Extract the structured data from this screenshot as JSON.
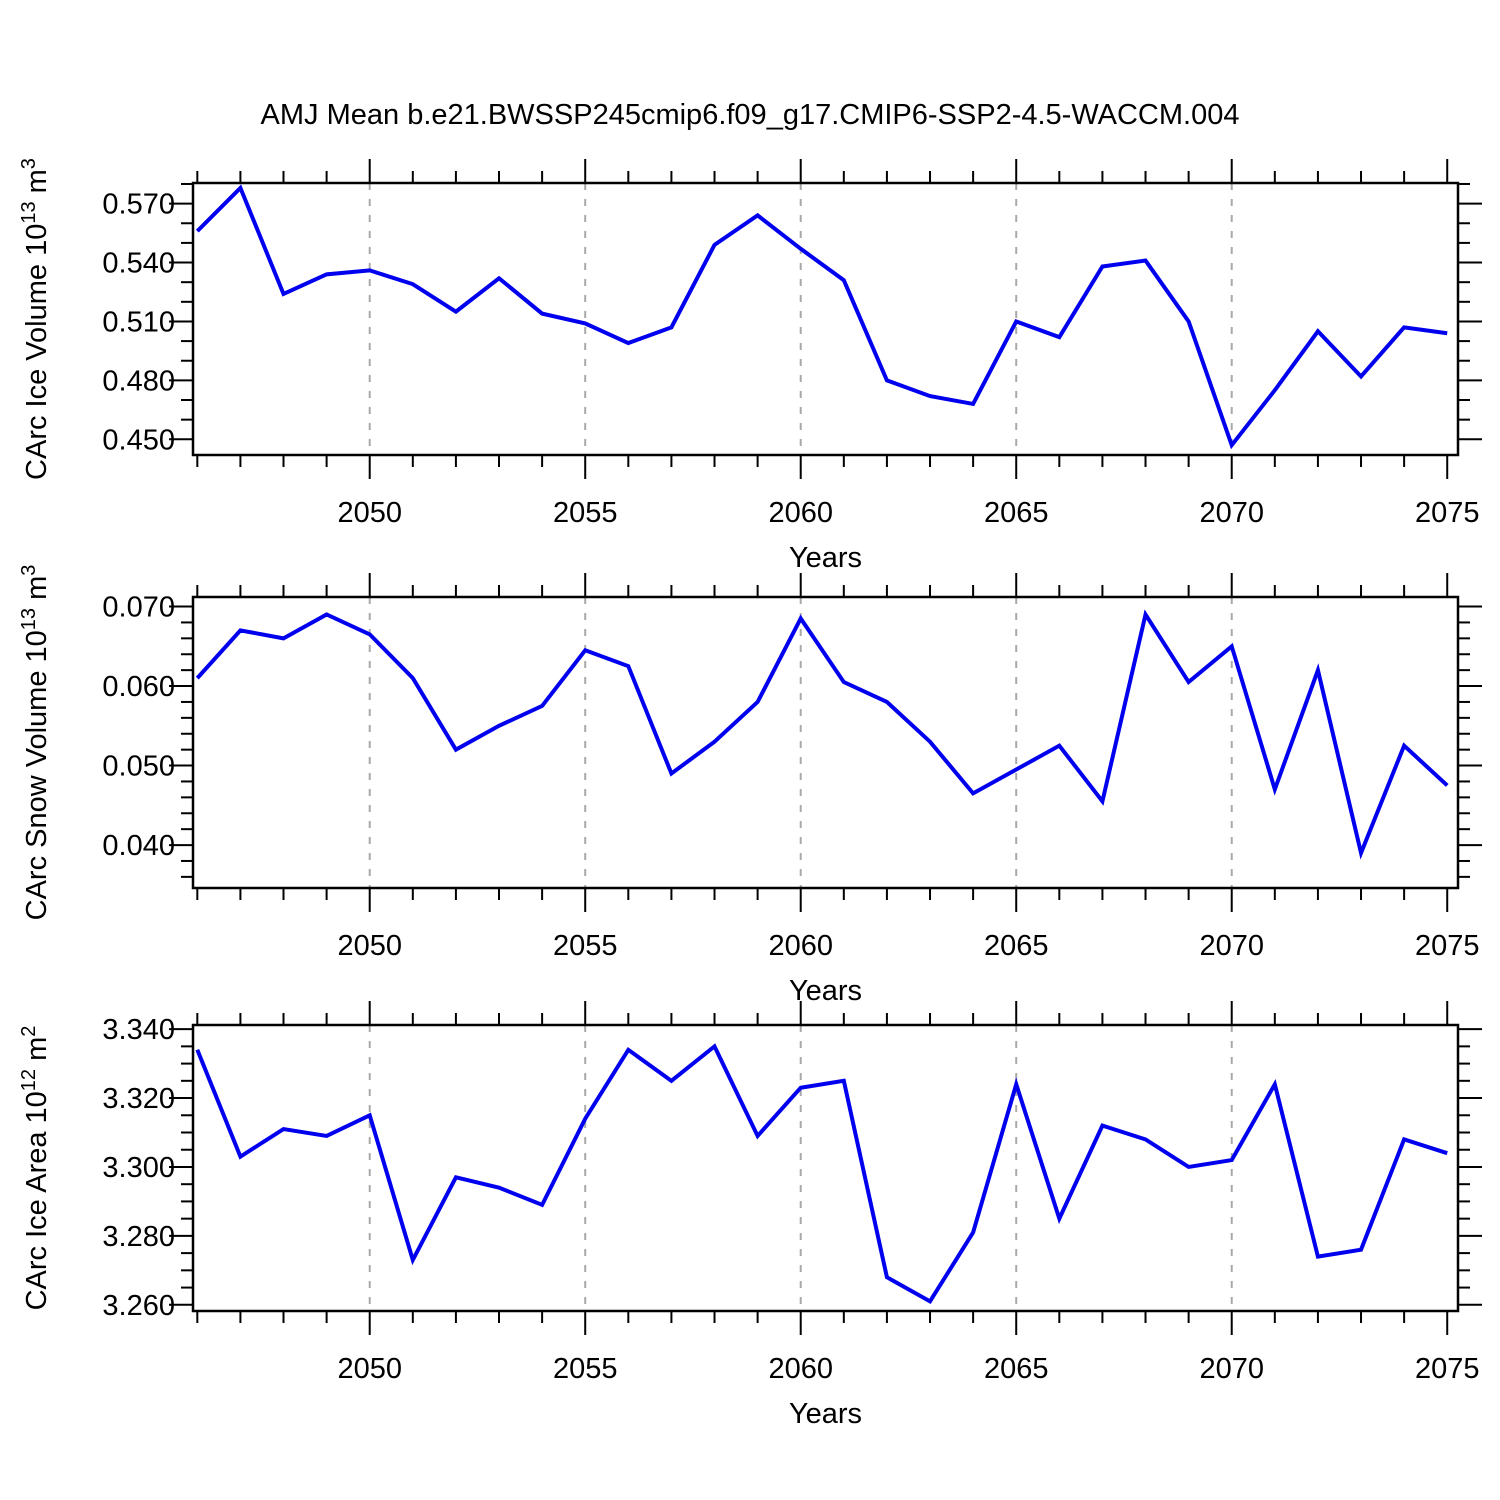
{
  "title": "AMJ Mean b.e21.BWSSP245cmip6.f09_g17.CMIP6-SSP2-4.5-WACCM.004",
  "line_color": "#0000EE",
  "grid_color": "#A9A9A9",
  "frame_color": "#000000",
  "chart_data": [
    {
      "type": "line",
      "name": "carc-ice-volume",
      "ylabel_parts": [
        {
          "t": "CArc Ice Volume 10"
        },
        {
          "t": "13",
          "sup": true
        },
        {
          "t": " m"
        },
        {
          "t": "3",
          "sup": true
        }
      ],
      "xlabel": "Years",
      "years": [
        2046,
        2047,
        2048,
        2049,
        2050,
        2051,
        2052,
        2053,
        2054,
        2055,
        2056,
        2057,
        2058,
        2059,
        2060,
        2061,
        2062,
        2063,
        2064,
        2065,
        2066,
        2067,
        2068,
        2069,
        2070,
        2071,
        2072,
        2073,
        2074,
        2075
      ],
      "values": [
        0.556,
        0.578,
        0.524,
        0.534,
        0.536,
        0.529,
        0.515,
        0.532,
        0.514,
        0.509,
        0.499,
        0.507,
        0.549,
        0.564,
        0.547,
        0.531,
        0.48,
        0.472,
        0.468,
        0.51,
        0.502,
        0.538,
        0.541,
        0.51,
        0.447,
        0.475,
        0.505,
        0.482,
        0.507,
        0.504
      ],
      "xlim": [
        2045.9,
        2075.25
      ],
      "ylim": [
        0.442,
        0.5805
      ],
      "xticks_major": [
        2050,
        2055,
        2060,
        2065,
        2070,
        2075
      ],
      "xtick_labels": [
        "2050",
        "2055",
        "2060",
        "2065",
        "2070",
        "2075"
      ],
      "yticks_major": [
        0.45,
        0.48,
        0.51,
        0.54,
        0.57
      ],
      "ytick_labels": [
        "0.450",
        "0.480",
        "0.510",
        "0.540",
        "0.570"
      ],
      "yticks_minor": {
        "start": 0.45,
        "step": 0.01,
        "end": 0.581
      },
      "grid_years": [
        2050,
        2055,
        2060,
        2065,
        2070
      ]
    },
    {
      "type": "line",
      "name": "carc-snow-volume",
      "ylabel_parts": [
        {
          "t": "CArc Snow Volume 10"
        },
        {
          "t": "13",
          "sup": true
        },
        {
          "t": " m"
        },
        {
          "t": "3",
          "sup": true
        }
      ],
      "xlabel": "Years",
      "years": [
        2046,
        2047,
        2048,
        2049,
        2050,
        2051,
        2052,
        2053,
        2054,
        2055,
        2056,
        2057,
        2058,
        2059,
        2060,
        2061,
        2062,
        2063,
        2064,
        2065,
        2066,
        2067,
        2068,
        2069,
        2070,
        2071,
        2072,
        2073,
        2074,
        2075
      ],
      "values": [
        0.061,
        0.067,
        0.066,
        0.069,
        0.0665,
        0.061,
        0.052,
        0.055,
        0.0575,
        0.0645,
        0.0625,
        0.049,
        0.053,
        0.058,
        0.0685,
        0.0605,
        0.058,
        0.053,
        0.0465,
        0.0495,
        0.0525,
        0.0455,
        0.069,
        0.0605,
        0.065,
        0.047,
        0.062,
        0.039,
        0.0525,
        0.0475
      ],
      "xlim": [
        2045.9,
        2075.25
      ],
      "ylim": [
        0.0346,
        0.0712
      ],
      "xticks_major": [
        2050,
        2055,
        2060,
        2065,
        2070,
        2075
      ],
      "xtick_labels": [
        "2050",
        "2055",
        "2060",
        "2065",
        "2070",
        "2075"
      ],
      "yticks_major": [
        0.04,
        0.05,
        0.06,
        0.07
      ],
      "ytick_labels": [
        "0.040",
        "0.050",
        "0.060",
        "0.070"
      ],
      "yticks_minor": {
        "start": 0.036,
        "step": 0.002,
        "end": 0.0705
      },
      "grid_years": [
        2050,
        2055,
        2060,
        2065,
        2070
      ]
    },
    {
      "type": "line",
      "name": "carc-ice-area",
      "ylabel_parts": [
        {
          "t": "CArc Ice Area 10"
        },
        {
          "t": "12",
          "sup": true
        },
        {
          "t": " m"
        },
        {
          "t": "2",
          "sup": true
        }
      ],
      "xlabel": "Years",
      "years": [
        2046,
        2047,
        2048,
        2049,
        2050,
        2051,
        2052,
        2053,
        2054,
        2055,
        2056,
        2057,
        2058,
        2059,
        2060,
        2061,
        2062,
        2063,
        2064,
        2065,
        2066,
        2067,
        2068,
        2069,
        2070,
        2071,
        2072,
        2073,
        2074,
        2075
      ],
      "values": [
        3.334,
        3.303,
        3.311,
        3.309,
        3.315,
        3.273,
        3.297,
        3.294,
        3.289,
        3.314,
        3.334,
        3.325,
        3.335,
        3.309,
        3.323,
        3.325,
        3.268,
        3.261,
        3.281,
        3.324,
        3.285,
        3.312,
        3.308,
        3.3,
        3.302,
        3.324,
        3.274,
        3.276,
        3.308,
        3.304
      ],
      "xlim": [
        2045.9,
        2075.25
      ],
      "ylim": [
        3.2582,
        3.3412
      ],
      "xticks_major": [
        2050,
        2055,
        2060,
        2065,
        2070,
        2075
      ],
      "xtick_labels": [
        "2050",
        "2055",
        "2060",
        "2065",
        "2070",
        "2075"
      ],
      "yticks_major": [
        3.26,
        3.28,
        3.3,
        3.32,
        3.34
      ],
      "ytick_labels": [
        "3.260",
        "3.280",
        "3.300",
        "3.320",
        "3.340"
      ],
      "yticks_minor": {
        "start": 3.26,
        "step": 0.005,
        "end": 3.3405
      },
      "grid_years": [
        2050,
        2055,
        2060,
        2065,
        2070
      ]
    }
  ]
}
